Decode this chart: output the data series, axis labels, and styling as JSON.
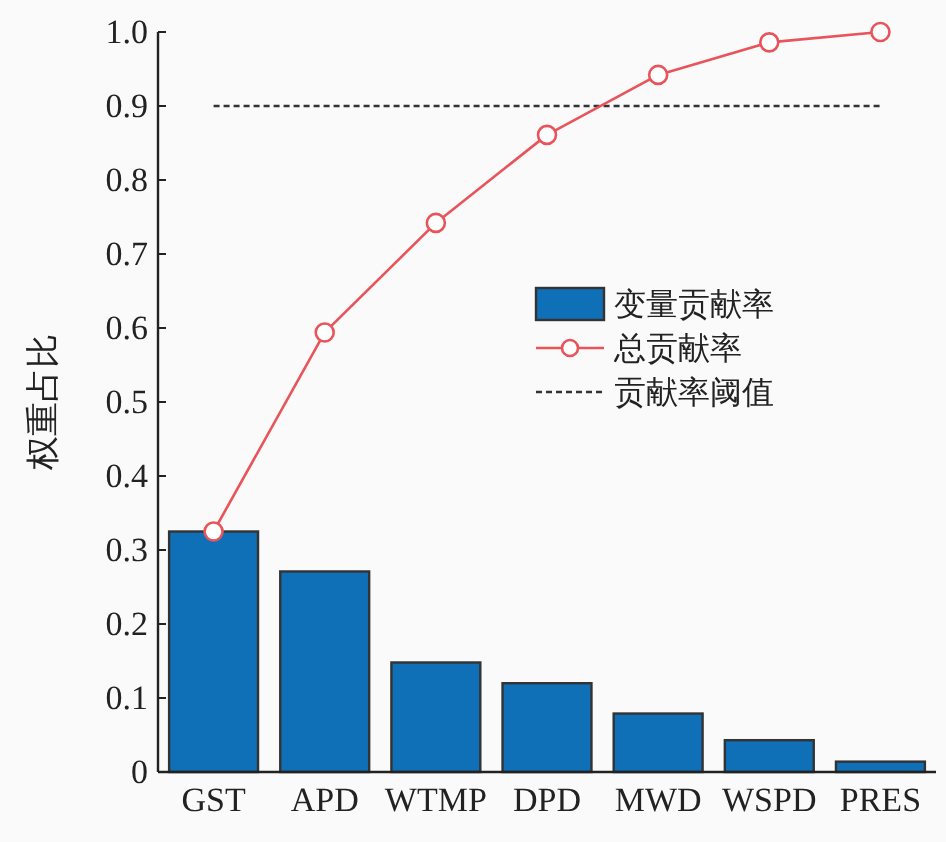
{
  "chart_data": {
    "type": "bar",
    "ylabel": "权重占比",
    "categories": [
      "GST",
      "APD",
      "WTMP",
      "DPD",
      "MWD",
      "WSPD",
      "PRES"
    ],
    "series": [
      {
        "name": "变量贡献率",
        "color": "#0f6fb7",
        "values": [
          0.325,
          0.271,
          0.148,
          0.12,
          0.079,
          0.043,
          0.014
        ]
      },
      {
        "name": "总贡献率",
        "type": "line",
        "color": "#e8545a",
        "marker": "circle",
        "values": [
          0.325,
          0.594,
          0.742,
          0.861,
          0.942,
          0.986,
          1.0
        ]
      }
    ],
    "ref_lines": [
      {
        "axis": "y",
        "value": 0.9,
        "label": "贡献率阈值",
        "color": "#333333",
        "line_style": "dotted"
      }
    ],
    "ylim": [
      0,
      1.0
    ],
    "yticks": [
      0,
      0.1,
      0.2,
      0.3,
      0.4,
      0.5,
      0.6,
      0.7,
      0.8,
      0.9,
      {
        "value": 1.0,
        "label": "1.0"
      }
    ],
    "grid": false,
    "legend": "right"
  }
}
